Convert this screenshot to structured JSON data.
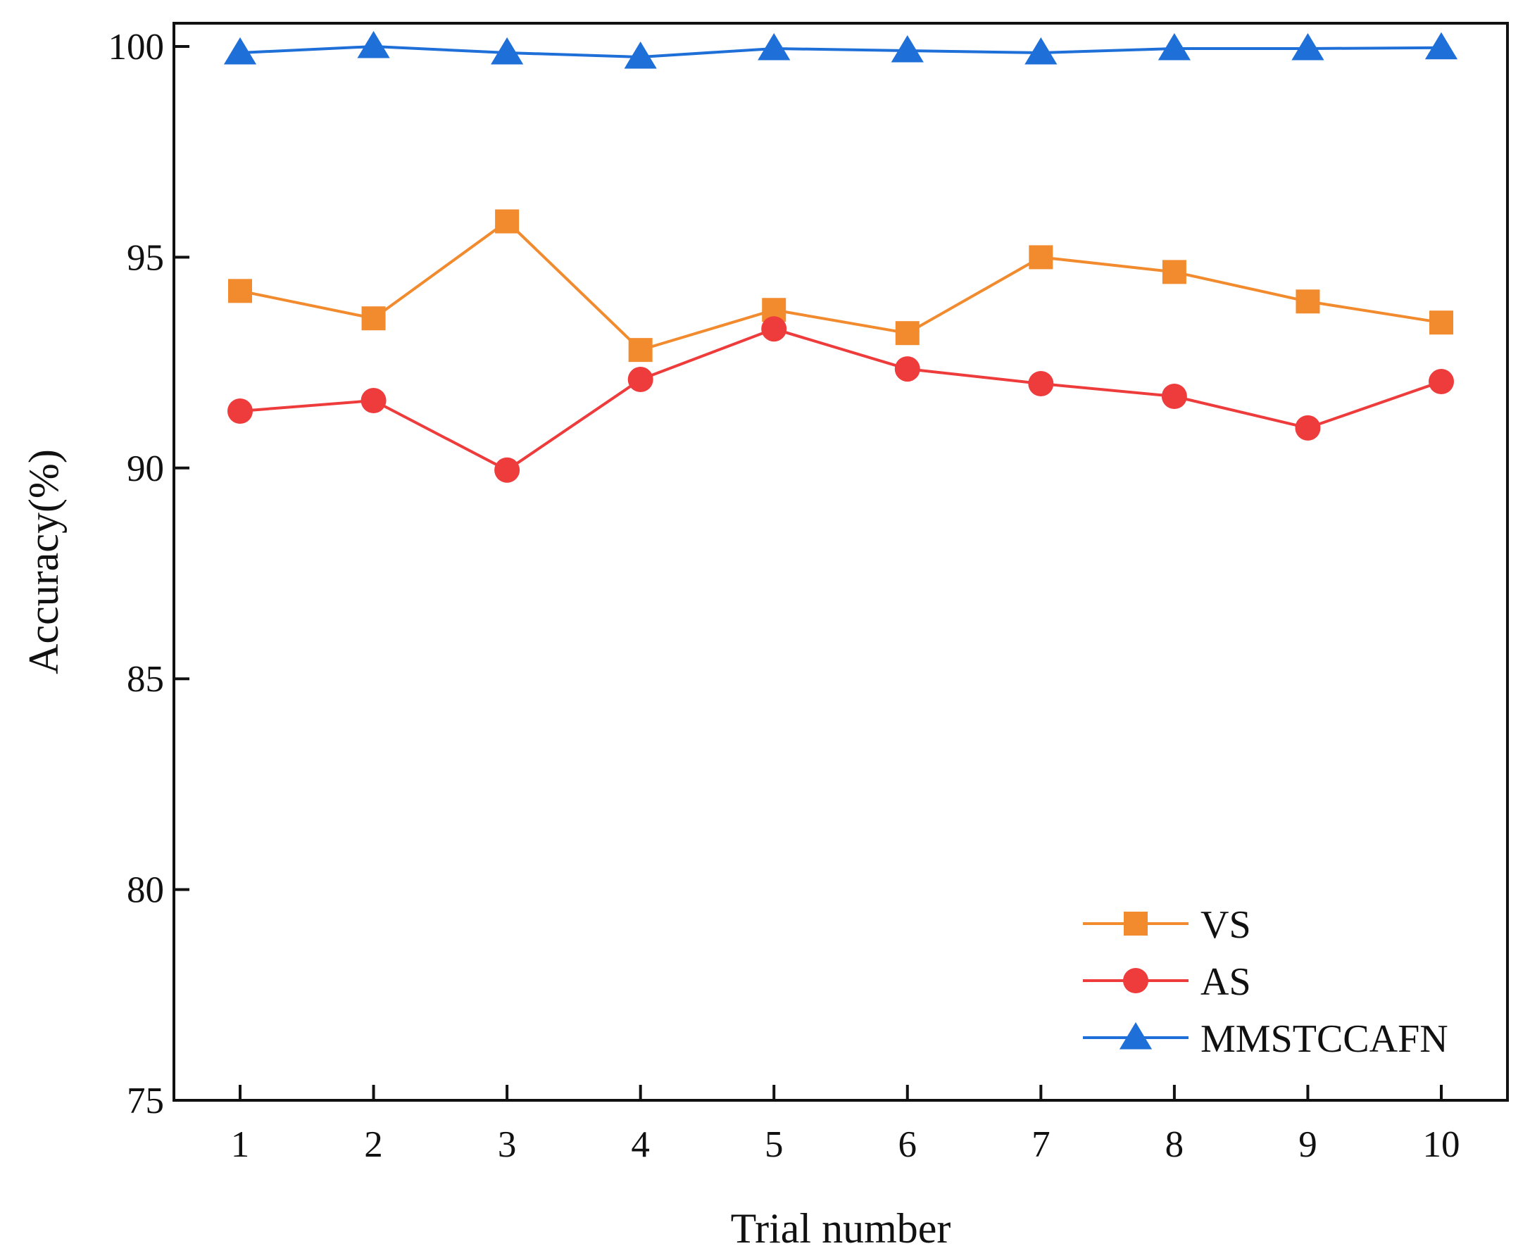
{
  "chart_data": {
    "type": "line",
    "title": "",
    "xlabel": "Trial number",
    "ylabel": "Accuracy(%)",
    "x": [
      1,
      2,
      3,
      4,
      5,
      6,
      7,
      8,
      9,
      10
    ],
    "xticks": [
      "1",
      "2",
      "3",
      "4",
      "5",
      "6",
      "7",
      "8",
      "9",
      "10"
    ],
    "ylim": [
      75,
      100
    ],
    "yticks": [
      "75",
      "80",
      "85",
      "90",
      "95",
      "100"
    ],
    "grid": false,
    "legend_position": "bottom-right",
    "series": [
      {
        "name": "VS",
        "color": "#F28A2E",
        "marker": "square",
        "values": [
          94.2,
          93.55,
          95.85,
          92.8,
          93.75,
          93.2,
          95.0,
          94.65,
          93.95,
          93.45
        ]
      },
      {
        "name": "AS",
        "color": "#EE3B3B",
        "marker": "circle",
        "values": [
          91.35,
          91.6,
          89.95,
          92.1,
          93.3,
          92.35,
          92.0,
          91.7,
          90.95,
          92.05
        ]
      },
      {
        "name": "MMSTCCAFN",
        "color": "#1F6FD9",
        "marker": "triangle",
        "values": [
          99.85,
          100.0,
          99.85,
          99.75,
          99.95,
          99.9,
          99.85,
          99.95,
          99.95,
          99.97
        ]
      }
    ]
  }
}
